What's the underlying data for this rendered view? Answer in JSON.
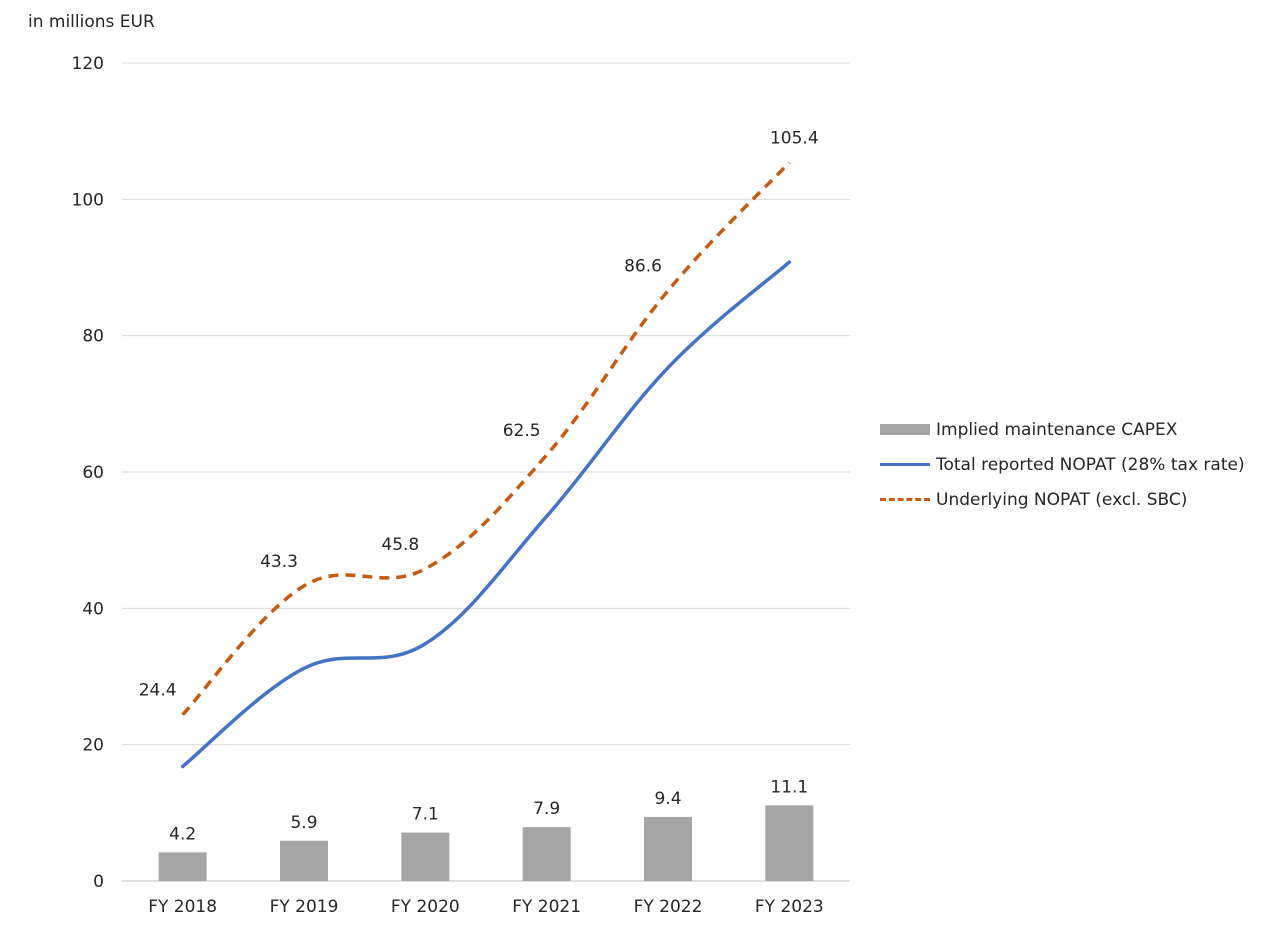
{
  "chart_data": {
    "type": "bar",
    "unit_label": "in millions EUR",
    "categories": [
      "FY 2018",
      "FY 2019",
      "FY 2020",
      "FY 2021",
      "FY 2022",
      "FY 2023"
    ],
    "ylim": [
      0,
      120
    ],
    "yticks": [
      0,
      20,
      40,
      60,
      80,
      100,
      120
    ],
    "grid": true,
    "legend_position": "right",
    "series": [
      {
        "name": "Implied maintenance CAPEX",
        "kind": "bar",
        "color": "#a5a5a5",
        "values": [
          4.2,
          5.9,
          7.1,
          7.9,
          9.4,
          11.1
        ],
        "labels": [
          "4.2",
          "5.9",
          "7.1",
          "7.9",
          "9.4",
          "11.1"
        ]
      },
      {
        "name": "Total reported NOPAT (28% tax rate)",
        "kind": "line",
        "color": "#4472c4",
        "values": [
          16.8,
          31.2,
          34.8,
          53.5,
          75.3,
          90.8
        ]
      },
      {
        "name": "Underlying NOPAT (excl. SBC)",
        "kind": "line-dashed",
        "color": "#c55a11",
        "values": [
          24.4,
          43.3,
          45.8,
          62.5,
          86.6,
          105.4
        ],
        "labels": [
          "24.4",
          "43.3",
          "45.8",
          "62.5",
          "86.6",
          "105.4"
        ]
      }
    ]
  }
}
